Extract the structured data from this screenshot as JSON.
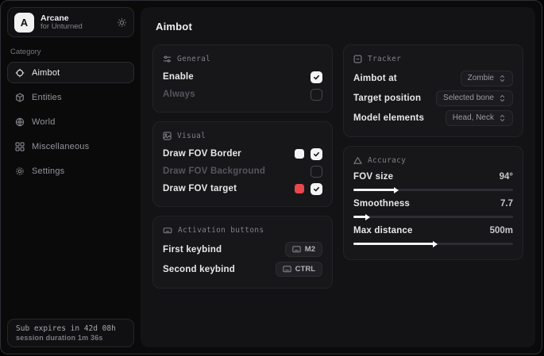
{
  "app": {
    "logo_letter": "A",
    "name": "Arcane",
    "subtitle": "for Unturned"
  },
  "sidebar": {
    "category_label": "Category",
    "items": [
      {
        "label": "Aimbot",
        "active": true
      },
      {
        "label": "Entities",
        "active": false
      },
      {
        "label": "World",
        "active": false
      },
      {
        "label": "Miscellaneous",
        "active": false
      },
      {
        "label": "Settings",
        "active": false
      }
    ],
    "footer": {
      "line1": "Sub expires in 42d 08h",
      "line2": "session duration 1m 36s"
    }
  },
  "page": {
    "title": "Aimbot"
  },
  "panels": {
    "general": {
      "title": "General",
      "rows": [
        {
          "label": "Enable",
          "checked": true
        },
        {
          "label": "Always",
          "checked": false,
          "disabled": true
        }
      ]
    },
    "visual": {
      "title": "Visual",
      "rows": [
        {
          "label": "Draw FOV Border",
          "swatch": "#f4f4f5",
          "checked": true
        },
        {
          "label": "Draw FOV Background",
          "checked": false,
          "disabled": true
        },
        {
          "label": "Draw FOV target",
          "swatch": "#e8484b",
          "checked": true
        }
      ]
    },
    "activation": {
      "title": "Activation buttons",
      "rows": [
        {
          "label": "First keybind",
          "key": "M2"
        },
        {
          "label": "Second keybind",
          "key": "CTRL"
        }
      ]
    },
    "tracker": {
      "title": "Tracker",
      "rows": [
        {
          "label": "Aimbot at",
          "value": "Zombie"
        },
        {
          "label": "Target position",
          "value": "Selected bone"
        },
        {
          "label": "Model elements",
          "value": "Head, Neck"
        }
      ]
    },
    "accuracy": {
      "title": "Accuracy",
      "sliders": [
        {
          "label": "FOV size",
          "value": "94°",
          "percent": 26
        },
        {
          "label": "Smoothness",
          "value": "7.7",
          "percent": 8
        },
        {
          "label": "Max distance",
          "value": "500m",
          "percent": 50
        }
      ]
    }
  },
  "colors": {
    "accent_red": "#e8484b",
    "swatch_white": "#f4f4f5",
    "panel_bg": "#17171a",
    "window_bg": "#0a0a0b"
  }
}
